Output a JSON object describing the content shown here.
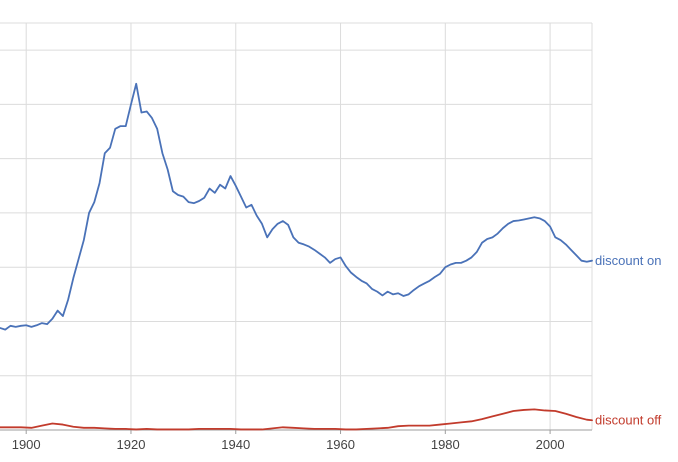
{
  "chart_data": {
    "type": "line",
    "title": "",
    "xlabel": "",
    "ylabel": "",
    "xlim": [
      1895,
      2008
    ],
    "ylim": [
      0,
      7.5
    ],
    "grid": true,
    "legend": "inline-right",
    "x_ticks": [
      1900,
      1920,
      1940,
      1960,
      1980,
      2000
    ],
    "x_tick_labels": [
      "1900",
      "1920",
      "1940",
      "1960",
      "1980",
      "2000"
    ],
    "y_ticks": [
      1,
      2,
      3,
      4,
      5,
      6,
      7
    ],
    "series": [
      {
        "name": "discount on",
        "color": "#4a72b8",
        "x": [
          1895,
          1896,
          1897,
          1898,
          1899,
          1900,
          1901,
          1902,
          1903,
          1904,
          1905,
          1906,
          1907,
          1908,
          1909,
          1910,
          1911,
          1912,
          1913,
          1914,
          1915,
          1916,
          1917,
          1918,
          1919,
          1920,
          1921,
          1922,
          1923,
          1924,
          1925,
          1926,
          1927,
          1928,
          1929,
          1930,
          1931,
          1932,
          1933,
          1934,
          1935,
          1936,
          1937,
          1938,
          1939,
          1940,
          1941,
          1942,
          1943,
          1944,
          1945,
          1946,
          1947,
          1948,
          1949,
          1950,
          1951,
          1952,
          1953,
          1954,
          1955,
          1956,
          1957,
          1958,
          1959,
          1960,
          1961,
          1962,
          1963,
          1964,
          1965,
          1966,
          1967,
          1968,
          1969,
          1970,
          1971,
          1972,
          1973,
          1974,
          1975,
          1976,
          1977,
          1978,
          1979,
          1980,
          1981,
          1982,
          1983,
          1984,
          1985,
          1986,
          1987,
          1988,
          1989,
          1990,
          1991,
          1992,
          1993,
          1994,
          1995,
          1996,
          1997,
          1998,
          1999,
          2000,
          2001,
          2002,
          2003,
          2004,
          2005,
          2006,
          2007,
          2008
        ],
        "values": [
          1.88,
          1.85,
          1.92,
          1.9,
          1.92,
          1.93,
          1.9,
          1.93,
          1.97,
          1.95,
          2.05,
          2.2,
          2.1,
          2.4,
          2.8,
          3.15,
          3.5,
          4.0,
          4.2,
          4.55,
          5.1,
          5.2,
          5.55,
          5.6,
          5.6,
          6.0,
          6.38,
          5.85,
          5.87,
          5.75,
          5.55,
          5.1,
          4.8,
          4.4,
          4.33,
          4.3,
          4.2,
          4.18,
          4.22,
          4.28,
          4.45,
          4.37,
          4.52,
          4.45,
          4.68,
          4.5,
          4.3,
          4.1,
          4.15,
          3.95,
          3.8,
          3.55,
          3.7,
          3.8,
          3.85,
          3.78,
          3.55,
          3.45,
          3.42,
          3.38,
          3.32,
          3.25,
          3.18,
          3.08,
          3.15,
          3.18,
          3.02,
          2.9,
          2.82,
          2.75,
          2.7,
          2.6,
          2.55,
          2.48,
          2.55,
          2.5,
          2.52,
          2.47,
          2.5,
          2.58,
          2.65,
          2.7,
          2.75,
          2.82,
          2.88,
          3.0,
          3.05,
          3.08,
          3.08,
          3.12,
          3.18,
          3.28,
          3.45,
          3.52,
          3.55,
          3.62,
          3.72,
          3.8,
          3.85,
          3.86,
          3.88,
          3.9,
          3.92,
          3.9,
          3.85,
          3.75,
          3.55,
          3.5,
          3.42,
          3.32,
          3.22,
          3.12,
          3.1,
          3.12
        ]
      },
      {
        "name": "discount off",
        "color": "#c23b2c",
        "x": [
          1895,
          1897,
          1899,
          1901,
          1903,
          1905,
          1907,
          1909,
          1911,
          1913,
          1915,
          1917,
          1919,
          1921,
          1923,
          1925,
          1927,
          1929,
          1931,
          1933,
          1935,
          1937,
          1939,
          1941,
          1943,
          1945,
          1947,
          1949,
          1951,
          1953,
          1955,
          1957,
          1959,
          1961,
          1963,
          1965,
          1967,
          1969,
          1971,
          1973,
          1975,
          1977,
          1979,
          1981,
          1983,
          1985,
          1987,
          1989,
          1991,
          1993,
          1995,
          1997,
          1999,
          2001,
          2003,
          2005,
          2007,
          2008
        ],
        "values": [
          0.05,
          0.05,
          0.05,
          0.04,
          0.08,
          0.12,
          0.1,
          0.06,
          0.04,
          0.04,
          0.03,
          0.02,
          0.02,
          0.01,
          0.02,
          0.01,
          0.01,
          0.01,
          0.01,
          0.02,
          0.02,
          0.02,
          0.02,
          0.01,
          0.01,
          0.01,
          0.03,
          0.05,
          0.04,
          0.03,
          0.02,
          0.02,
          0.02,
          0.01,
          0.01,
          0.02,
          0.03,
          0.04,
          0.07,
          0.08,
          0.08,
          0.08,
          0.1,
          0.12,
          0.14,
          0.16,
          0.2,
          0.25,
          0.3,
          0.35,
          0.37,
          0.38,
          0.36,
          0.35,
          0.3,
          0.24,
          0.19,
          0.18
        ]
      }
    ]
  }
}
